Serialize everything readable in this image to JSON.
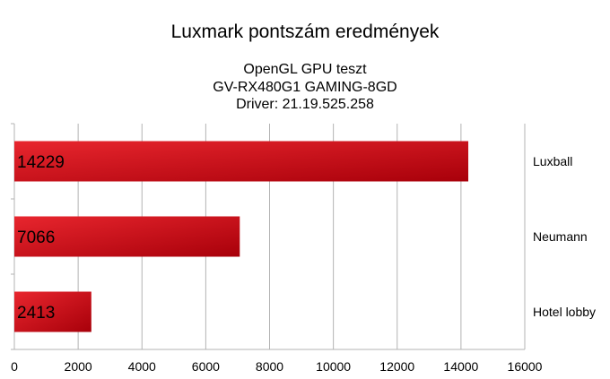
{
  "chart_data": {
    "type": "bar",
    "orientation": "horizontal",
    "title": "Luxmark pontszám eredmények",
    "subtitle": [
      "OpenGL GPU teszt",
      "GV-RX480G1 GAMING-8GD",
      "Driver: 21.19.525.258"
    ],
    "categories": [
      "Luxball",
      "Neumann",
      "Hotel lobby"
    ],
    "values": [
      14229,
      7066,
      2413
    ],
    "data_labels": [
      "14229",
      "7066",
      "2413"
    ],
    "xlim": [
      0,
      16000
    ],
    "x_ticks": [
      "0",
      "2000",
      "4000",
      "6000",
      "8000",
      "10000",
      "12000",
      "14000",
      "16000"
    ],
    "grid": true,
    "category_labels_position": "right",
    "bar_color": "#d41a22",
    "bar_color_dark": "#a8000a",
    "grid_color": "#b3b3b3"
  }
}
